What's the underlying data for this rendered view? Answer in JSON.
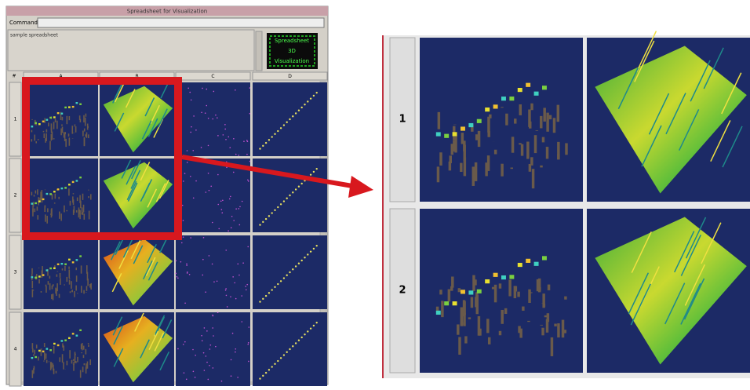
{
  "window": {
    "title": "Spreadsheet for Visualization",
    "command_label": "Command:",
    "message": "sample spreadsheet",
    "logo": [
      "Spreadsheet",
      "3D",
      "Visualization"
    ],
    "corner": "#",
    "columns": [
      "A",
      "B",
      "C",
      "D"
    ],
    "rows": [
      "1",
      "2",
      "3",
      "4"
    ]
  },
  "zoom": {
    "rows": [
      "1",
      "2"
    ]
  }
}
